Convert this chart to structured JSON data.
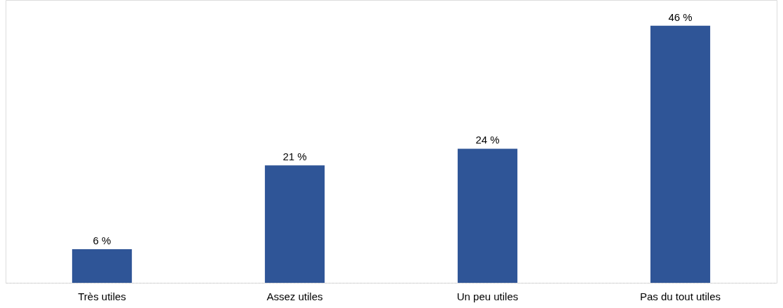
{
  "chart_data": {
    "type": "bar",
    "categories": [
      "Très utiles",
      "Assez utiles",
      "Un peu utiles",
      "Pas du tout utiles"
    ],
    "values": [
      6,
      21,
      24,
      46
    ],
    "value_labels": [
      "6 %",
      "21 %",
      "24 %",
      "46 %"
    ],
    "color": "#2f5597",
    "grid": false
  }
}
